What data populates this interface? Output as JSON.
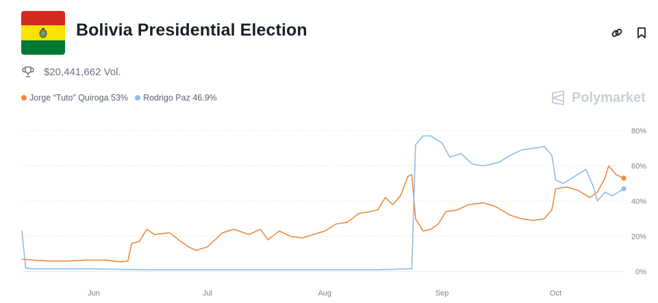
{
  "header": {
    "title": "Bolivia Presidential Election",
    "volume": "$20,441,662 Vol.",
    "brand": "Polymarket"
  },
  "icons": {
    "flag": "bolivia-flag",
    "link": "link-icon",
    "bookmark": "bookmark-icon",
    "trophy": "trophy-icon",
    "brand": "polymarket-logo-icon"
  },
  "colors": {
    "series_orange": "#f0883a",
    "series_blue": "#8bbcea",
    "flag_red": "#d52b1e",
    "flag_yellow": "#f9e300",
    "flag_green": "#007934"
  },
  "legend": [
    {
      "label": "Jorge “Tuto” Quiroga 53%",
      "color": "#f0883a"
    },
    {
      "label": "Rodrigo Paz 46.9%",
      "color": "#8bbcea"
    }
  ],
  "chart_data": {
    "type": "line",
    "x_ticks": [
      "Jun",
      "Jul",
      "Aug",
      "Sep",
      "Oct"
    ],
    "x_tick_dates": [
      "2025-06-01",
      "2025-07-01",
      "2025-08-01",
      "2025-09-01",
      "2025-10-01"
    ],
    "x_range": [
      "2025-05-13",
      "2025-10-19"
    ],
    "y_ticks": [
      "0%",
      "20%",
      "40%",
      "60%",
      "80%"
    ],
    "y_tick_values": [
      0,
      20,
      40,
      60,
      80
    ],
    "ylim": [
      0,
      80
    ],
    "grid": true,
    "series": [
      {
        "name": "Jorge “Tuto” Quiroga",
        "color": "#f0883a",
        "points": [
          [
            "2025-05-13",
            7
          ],
          [
            "2025-05-16",
            6.5
          ],
          [
            "2025-05-20",
            6
          ],
          [
            "2025-05-25",
            6
          ],
          [
            "2025-05-30",
            6.5
          ],
          [
            "2025-06-04",
            6.5
          ],
          [
            "2025-06-08",
            5.5
          ],
          [
            "2025-06-10",
            6
          ],
          [
            "2025-06-11",
            16
          ],
          [
            "2025-06-13",
            17
          ],
          [
            "2025-06-15",
            24
          ],
          [
            "2025-06-17",
            21
          ],
          [
            "2025-06-21",
            22
          ],
          [
            "2025-06-24",
            17
          ],
          [
            "2025-06-26",
            14
          ],
          [
            "2025-06-28",
            12
          ],
          [
            "2025-07-01",
            14
          ],
          [
            "2025-07-03",
            18
          ],
          [
            "2025-07-05",
            22
          ],
          [
            "2025-07-08",
            24
          ],
          [
            "2025-07-12",
            21
          ],
          [
            "2025-07-15",
            24
          ],
          [
            "2025-07-17",
            18
          ],
          [
            "2025-07-20",
            23
          ],
          [
            "2025-07-23",
            20
          ],
          [
            "2025-07-26",
            19
          ],
          [
            "2025-07-29",
            21
          ],
          [
            "2025-08-01",
            23
          ],
          [
            "2025-08-04",
            27
          ],
          [
            "2025-08-07",
            28
          ],
          [
            "2025-08-10",
            33
          ],
          [
            "2025-08-13",
            34
          ],
          [
            "2025-08-15",
            35
          ],
          [
            "2025-08-17",
            42
          ],
          [
            "2025-08-19",
            38
          ],
          [
            "2025-08-21",
            43
          ],
          [
            "2025-08-23",
            54
          ],
          [
            "2025-08-24",
            55
          ],
          [
            "2025-08-25",
            30
          ],
          [
            "2025-08-27",
            23
          ],
          [
            "2025-08-29",
            24
          ],
          [
            "2025-08-31",
            27
          ],
          [
            "2025-09-02",
            34
          ],
          [
            "2025-09-05",
            35
          ],
          [
            "2025-09-08",
            38
          ],
          [
            "2025-09-12",
            39
          ],
          [
            "2025-09-15",
            37
          ],
          [
            "2025-09-19",
            32
          ],
          [
            "2025-09-22",
            30
          ],
          [
            "2025-09-25",
            29
          ],
          [
            "2025-09-28",
            30
          ],
          [
            "2025-09-30",
            35
          ],
          [
            "2025-10-01",
            47
          ],
          [
            "2025-10-04",
            48
          ],
          [
            "2025-10-07",
            46
          ],
          [
            "2025-10-10",
            42
          ],
          [
            "2025-10-12",
            45
          ],
          [
            "2025-10-14",
            53
          ],
          [
            "2025-10-15",
            60
          ],
          [
            "2025-10-17",
            55
          ],
          [
            "2025-10-19",
            53
          ]
        ]
      },
      {
        "name": "Rodrigo Paz",
        "color": "#8bbcea",
        "points": [
          [
            "2025-05-13",
            23
          ],
          [
            "2025-05-14",
            2
          ],
          [
            "2025-05-16",
            1.5
          ],
          [
            "2025-06-01",
            1.5
          ],
          [
            "2025-06-15",
            1
          ],
          [
            "2025-07-01",
            1
          ],
          [
            "2025-07-15",
            1
          ],
          [
            "2025-08-01",
            1
          ],
          [
            "2025-08-15",
            1
          ],
          [
            "2025-08-23",
            1.5
          ],
          [
            "2025-08-24",
            1.5
          ],
          [
            "2025-08-25",
            72
          ],
          [
            "2025-08-27",
            77
          ],
          [
            "2025-08-29",
            77
          ],
          [
            "2025-09-01",
            73
          ],
          [
            "2025-09-03",
            65
          ],
          [
            "2025-09-06",
            67
          ],
          [
            "2025-09-09",
            61
          ],
          [
            "2025-09-12",
            60
          ],
          [
            "2025-09-16",
            62
          ],
          [
            "2025-09-19",
            66
          ],
          [
            "2025-09-22",
            69
          ],
          [
            "2025-09-25",
            70
          ],
          [
            "2025-09-28",
            71
          ],
          [
            "2025-09-30",
            66
          ],
          [
            "2025-10-01",
            52
          ],
          [
            "2025-10-03",
            50
          ],
          [
            "2025-10-06",
            54
          ],
          [
            "2025-10-09",
            58
          ],
          [
            "2025-10-11",
            48
          ],
          [
            "2025-10-12",
            40
          ],
          [
            "2025-10-14",
            45
          ],
          [
            "2025-10-16",
            43
          ],
          [
            "2025-10-19",
            47
          ]
        ]
      }
    ]
  }
}
